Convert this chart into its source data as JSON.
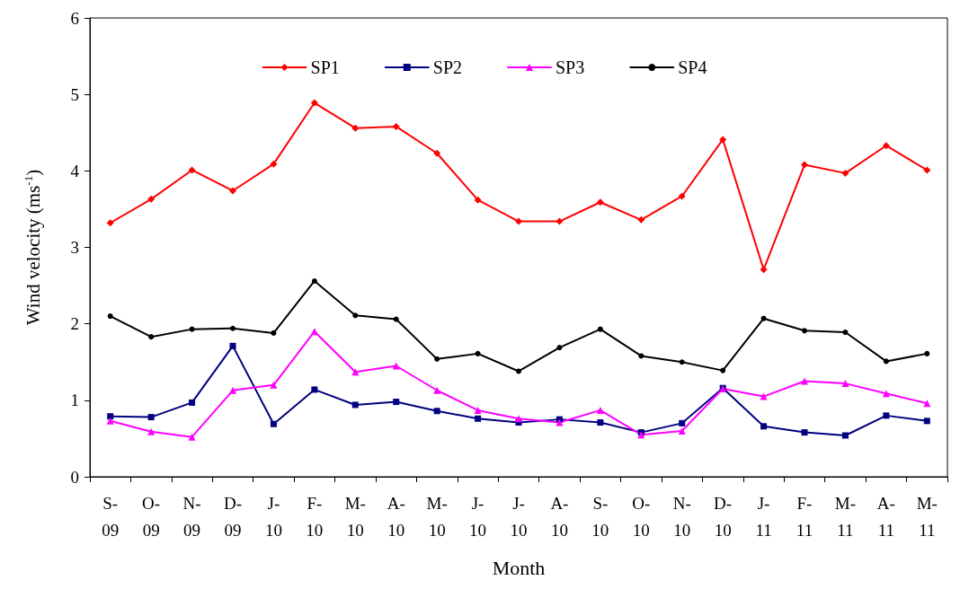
{
  "chart_data": {
    "type": "line",
    "xlabel": "Month",
    "ylabel": "Wind velocity (ms$^{-1}$)",
    "categories": [
      "S-09",
      "O-09",
      "N-09",
      "D-09",
      "J-10",
      "F-10",
      "M-10",
      "A-10",
      "M-10",
      "J-10",
      "J-10",
      "A-10",
      "S-10",
      "O-10",
      "N-10",
      "D-10",
      "J-11",
      "F-11",
      "M-11",
      "A-11",
      "M-11"
    ],
    "series": [
      {
        "name": "SP1",
        "color": "#ff0000",
        "marker": "diamond",
        "values": [
          3.32,
          3.63,
          4.01,
          3.74,
          4.09,
          4.89,
          4.56,
          4.58,
          4.23,
          3.62,
          3.34,
          3.34,
          3.59,
          3.36,
          3.67,
          4.41,
          2.71,
          4.08,
          3.97,
          4.33,
          4.01
        ]
      },
      {
        "name": "SP2",
        "color": "#000080",
        "marker": "square",
        "values": [
          0.79,
          0.78,
          0.97,
          1.71,
          0.69,
          1.14,
          0.94,
          0.98,
          0.86,
          0.76,
          0.71,
          0.75,
          0.71,
          0.58,
          0.7,
          1.16,
          0.66,
          0.58,
          0.54,
          0.8,
          0.73
        ]
      },
      {
        "name": "SP3",
        "color": "#ff00ff",
        "marker": "triangle",
        "values": [
          0.73,
          0.59,
          0.52,
          1.13,
          1.2,
          1.9,
          1.37,
          1.45,
          1.13,
          0.87,
          0.76,
          0.71,
          0.87,
          0.55,
          0.6,
          1.15,
          1.05,
          1.25,
          1.22,
          1.09,
          0.96
        ]
      },
      {
        "name": "SP4",
        "color": "#000000",
        "marker": "circle",
        "values": [
          2.1,
          1.83,
          1.93,
          1.94,
          1.88,
          2.56,
          2.11,
          2.06,
          1.54,
          1.61,
          1.38,
          1.69,
          1.93,
          1.58,
          1.5,
          1.39,
          2.07,
          1.91,
          1.89,
          1.51,
          1.61
        ]
      }
    ],
    "ylim": [
      0,
      6
    ],
    "yticks": [
      0,
      1,
      2,
      3,
      4,
      5,
      6
    ],
    "grid": false,
    "legend": "top"
  }
}
